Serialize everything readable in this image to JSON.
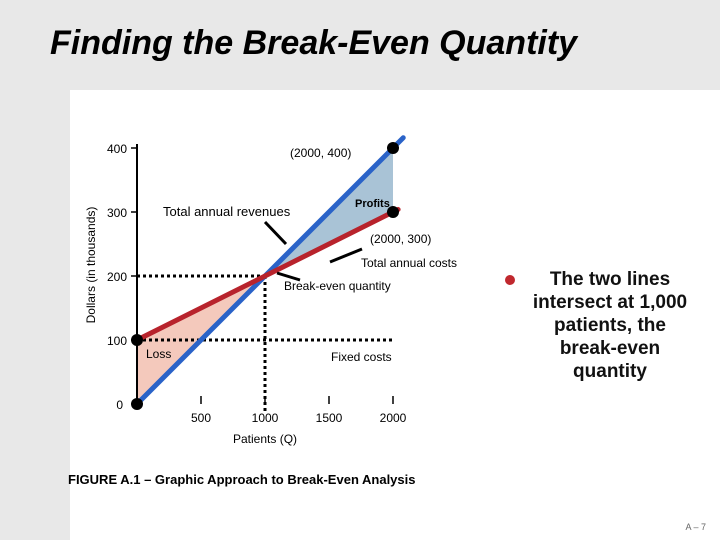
{
  "slide": {
    "title": "Finding the Break-Even Quantity",
    "bullet": "The two lines intersect at 1,000 patients, the break-even quantity",
    "caption": "FIGURE A.1 – Graphic Approach to Break-Even Analysis",
    "page_number": "A – 7"
  },
  "colors": {
    "revenue_line": "#2a63c8",
    "cost_line": "#b8232c",
    "profit_region": "#a9c3d6",
    "loss_region": "#f4c9bc",
    "bullet": "#c0282e",
    "background_band": "#e8e8e8"
  },
  "chart_data": {
    "type": "line",
    "xlabel": "Patients (Q)",
    "ylabel": "Dollars (in thousands)",
    "xlim": [
      0,
      2000
    ],
    "ylim": [
      0,
      400
    ],
    "x_ticks": [
      {
        "value": 500,
        "label": "500"
      },
      {
        "value": 1000,
        "label": "1000"
      },
      {
        "value": 1500,
        "label": "1500"
      },
      {
        "value": 2000,
        "label": "2000"
      }
    ],
    "y_ticks": [
      {
        "value": 0,
        "label": "0"
      },
      {
        "value": 100,
        "label": "100"
      },
      {
        "value": 200,
        "label": "200"
      },
      {
        "value": 300,
        "label": "300"
      },
      {
        "value": 400,
        "label": "400"
      }
    ],
    "series": [
      {
        "key": "revenue",
        "name": "Total annual revenues",
        "x": [
          0,
          2000
        ],
        "y": [
          0,
          400
        ]
      },
      {
        "key": "cost",
        "name": "Total annual costs",
        "x": [
          0,
          2000
        ],
        "y": [
          100,
          300
        ]
      }
    ],
    "fixed_costs": 100,
    "break_even": {
      "x": 1000,
      "y": 200
    },
    "markers": [
      {
        "x": 0,
        "y": 0
      },
      {
        "x": 0,
        "y": 100
      },
      {
        "x": 2000,
        "y": 300
      },
      {
        "x": 2000,
        "y": 400
      }
    ],
    "annotations": {
      "point_400": "(2000, 400)",
      "point_300": "(2000, 300)",
      "revenue_label": "Total annual revenues",
      "cost_label": "Total annual costs",
      "profits": "Profits",
      "loss": "Loss",
      "break_even": "Break-even quantity",
      "fixed_costs": "Fixed costs"
    }
  }
}
